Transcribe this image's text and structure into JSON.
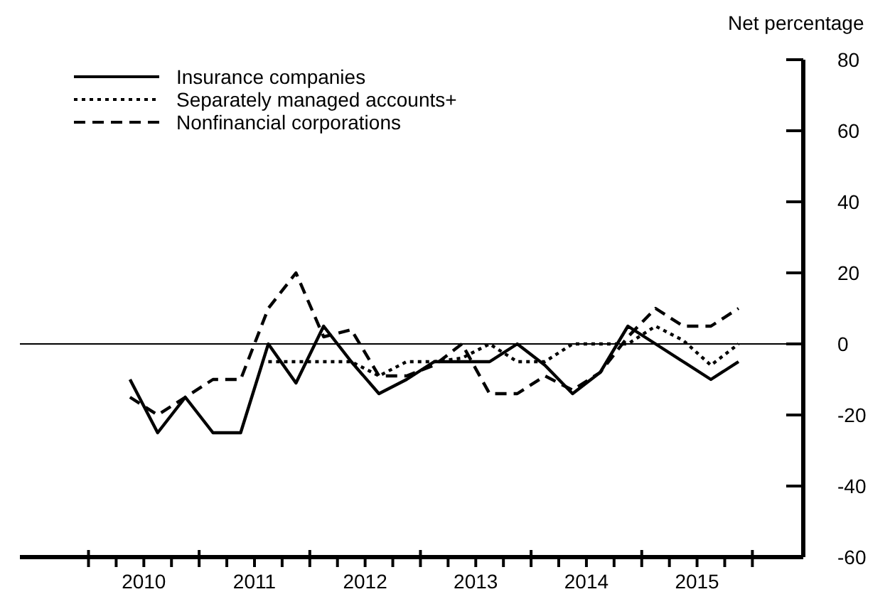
{
  "chart_data": {
    "type": "line",
    "ylabel": "Net percentage",
    "x": [
      2010.375,
      2010.625,
      2010.875,
      2011.125,
      2011.375,
      2011.625,
      2011.875,
      2012.125,
      2012.375,
      2012.625,
      2012.875,
      2013.125,
      2013.375,
      2013.625,
      2013.875,
      2014.125,
      2014.375,
      2014.625,
      2014.875,
      2015.125,
      2015.375,
      2015.625,
      2015.875
    ],
    "series": [
      {
        "name": "Insurance companies",
        "color": "#000000",
        "line_style": "solid",
        "values": [
          -10,
          -25,
          -15,
          -25,
          -25,
          0,
          -11,
          5,
          -5,
          -14,
          -10,
          -5,
          -5,
          -5,
          0,
          -6,
          -14,
          -8,
          5,
          0,
          -5,
          -10,
          -5
        ]
      },
      {
        "name": "Separately managed accounts+",
        "color": "#000000",
        "line_style": "dotted",
        "values": [
          null,
          null,
          null,
          null,
          null,
          -5,
          -5,
          -5,
          -5,
          -9,
          -5,
          -5,
          -4,
          0,
          -5,
          -5,
          0,
          0,
          0,
          5,
          1,
          -6,
          0
        ]
      },
      {
        "name": "Nonfinancial corporations",
        "color": "#000000",
        "line_style": "dashed",
        "values": [
          -15,
          -20,
          -15,
          -10,
          -10,
          10,
          20,
          2,
          4,
          -9,
          -9,
          -6,
          0,
          -14,
          -14,
          -9,
          -13,
          -8,
          2,
          10,
          5,
          5,
          10
        ]
      }
    ],
    "xlim": [
      2009.38,
      2016.46
    ],
    "xticks": [
      {
        "value": 2010,
        "label": null
      },
      {
        "value": 2010.25,
        "label": null
      },
      {
        "value": 2010.5,
        "label": "2010"
      },
      {
        "value": 2010.75,
        "label": null
      },
      {
        "value": 2011,
        "label": null
      },
      {
        "value": 2011.25,
        "label": null
      },
      {
        "value": 2011.5,
        "label": "2011"
      },
      {
        "value": 2011.75,
        "label": null
      },
      {
        "value": 2012,
        "label": null
      },
      {
        "value": 2012.25,
        "label": null
      },
      {
        "value": 2012.5,
        "label": "2012"
      },
      {
        "value": 2012.75,
        "label": null
      },
      {
        "value": 2013,
        "label": null
      },
      {
        "value": 2013.25,
        "label": null
      },
      {
        "value": 2013.5,
        "label": "2013"
      },
      {
        "value": 2013.75,
        "label": null
      },
      {
        "value": 2014,
        "label": null
      },
      {
        "value": 2014.25,
        "label": null
      },
      {
        "value": 2014.5,
        "label": "2014"
      },
      {
        "value": 2014.75,
        "label": null
      },
      {
        "value": 2015,
        "label": null
      },
      {
        "value": 2015.25,
        "label": null
      },
      {
        "value": 2015.5,
        "label": "2015"
      },
      {
        "value": 2015.75,
        "label": null
      },
      {
        "value": 2016,
        "label": null
      }
    ],
    "ylim": [
      -60,
      80
    ],
    "yticks": [
      -60,
      -40,
      -20,
      0,
      20,
      40,
      60,
      80
    ],
    "ref_lines": [
      {
        "axis": "y",
        "value": 0,
        "color": "#000000"
      }
    ],
    "grid": false,
    "legend": "top left",
    "marker": "none"
  }
}
